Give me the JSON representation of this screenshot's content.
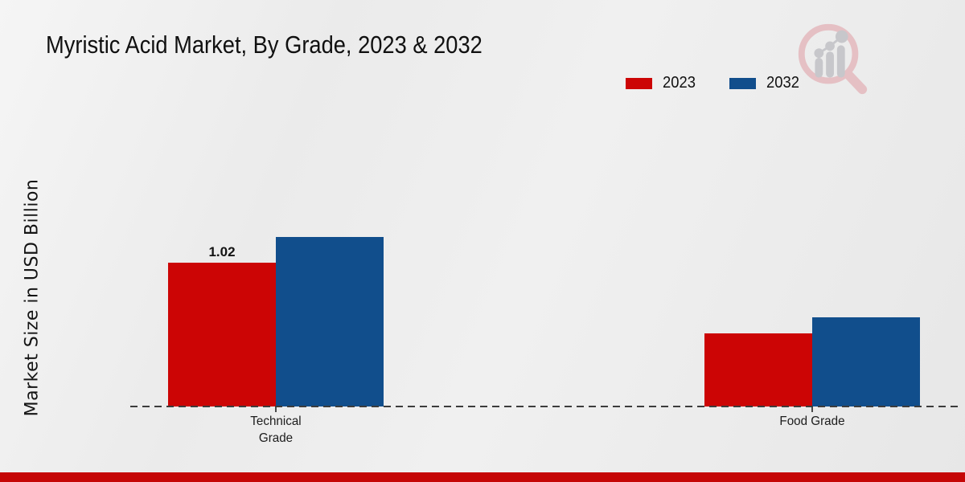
{
  "title": "Myristic Acid Market, By Grade, 2023 & 2032",
  "ylabel": "Market Size in USD Billion",
  "footer_bar_color": "#c50606",
  "watermark": {
    "icon": "magnifier-bar-chart-logo",
    "ring_color": "#e5c0c4",
    "bars_color": "#c7c7cb"
  },
  "chart_data": {
    "type": "bar",
    "categories": [
      "Technical Grade",
      "Food Grade"
    ],
    "tick_labels": [
      "Technical\nGrade",
      "Food Grade"
    ],
    "series": [
      {
        "name": "2023",
        "color": "#cc0505",
        "values": [
          1.02,
          0.52
        ]
      },
      {
        "name": "2032",
        "color": "#114e8c",
        "values": [
          1.2,
          0.63
        ]
      }
    ],
    "annotations": [
      {
        "series_index": 0,
        "category_index": 0,
        "text": "1.02"
      }
    ],
    "xlabel": "",
    "ylim": [
      0,
      1.4
    ],
    "grid": false,
    "baseline_style": "dashed",
    "legend_position": "top-right"
  }
}
